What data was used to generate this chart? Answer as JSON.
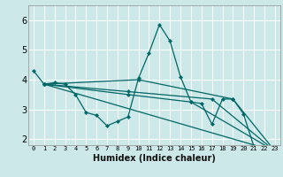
{
  "xlabel": "Humidex (Indice chaleur)",
  "bg_color": "#cce8e8",
  "line_color": "#006666",
  "grid_color": "#ffffff",
  "xlim": [
    -0.5,
    23.5
  ],
  "ylim": [
    1.8,
    6.5
  ],
  "yticks": [
    2,
    3,
    4,
    5,
    6
  ],
  "xticks": [
    0,
    1,
    2,
    3,
    4,
    5,
    6,
    7,
    8,
    9,
    10,
    11,
    12,
    13,
    14,
    15,
    16,
    17,
    18,
    19,
    20,
    21,
    22,
    23
  ],
  "multi_curves": [
    {
      "x": [
        0,
        1,
        2,
        3,
        4,
        5,
        6,
        7,
        8,
        9,
        10,
        11,
        12,
        13,
        14,
        15,
        16,
        17,
        18,
        19,
        20,
        21,
        22,
        23
      ],
      "y": [
        4.3,
        3.85,
        3.9,
        3.85,
        3.5,
        2.9,
        2.8,
        2.45,
        2.6,
        2.75,
        4.05,
        4.9,
        5.85,
        5.3,
        4.1,
        3.25,
        3.2,
        2.5,
        3.35,
        3.35,
        2.85,
        1.75,
        1.7,
        1.6
      ]
    },
    {
      "x": [
        1,
        23
      ],
      "y": [
        3.85,
        1.6
      ]
    },
    {
      "x": [
        1,
        10,
        19,
        23
      ],
      "y": [
        3.85,
        4.0,
        3.35,
        1.6
      ]
    },
    {
      "x": [
        1,
        9,
        17,
        23
      ],
      "y": [
        3.85,
        3.6,
        3.35,
        1.6
      ]
    },
    {
      "x": [
        1,
        9,
        15,
        23
      ],
      "y": [
        3.85,
        3.5,
        3.25,
        1.6
      ]
    }
  ]
}
